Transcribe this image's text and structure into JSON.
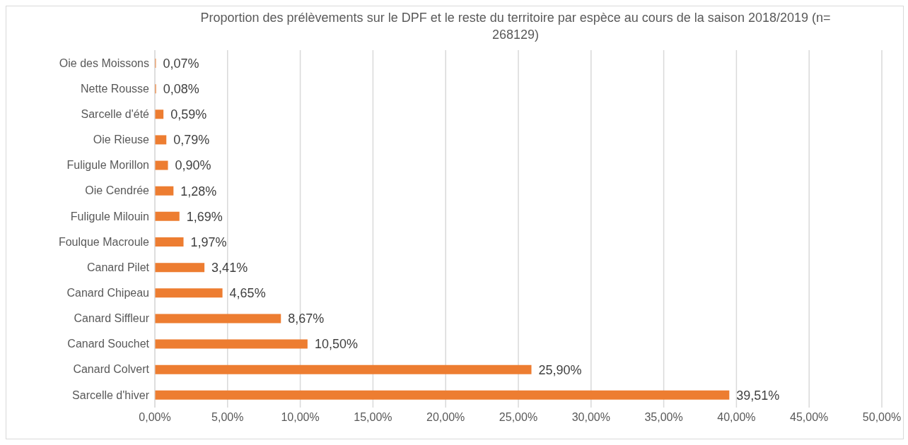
{
  "chart_data": {
    "type": "bar",
    "orientation": "horizontal",
    "title": "Proportion des prélèvements sur le DPF et le reste du territoire par espèce au cours de la saison 2018/2019 (n= 268129)",
    "categories": [
      "Oie des Moissons",
      "Nette Rousse",
      "Sarcelle d'été",
      "Oie Rieuse",
      "Fuligule Morillon",
      "Oie Cendrée",
      "Fuligule Milouin",
      "Foulque Macroule",
      "Canard Pilet",
      "Canard Chipeau",
      "Canard Siffleur",
      "Canard Souchet",
      "Canard Colvert",
      "Sarcelle d'hiver"
    ],
    "values": [
      0.07,
      0.08,
      0.59,
      0.79,
      0.9,
      1.28,
      1.69,
      1.97,
      3.41,
      4.65,
      8.67,
      10.5,
      25.9,
      39.51
    ],
    "value_labels": [
      "0,07%",
      "0,08%",
      "0,59%",
      "0,79%",
      "0,90%",
      "1,28%",
      "1,69%",
      "1,97%",
      "3,41%",
      "4,65%",
      "8,67%",
      "10,50%",
      "25,90%",
      "39,51%"
    ],
    "color": "#ed7d31",
    "xlim": [
      0,
      50
    ],
    "xticks": [
      {
        "value": 0,
        "label": "0,00%"
      },
      {
        "value": 5,
        "label": "5,00%"
      },
      {
        "value": 10,
        "label": "10,00%"
      },
      {
        "value": 15,
        "label": "15,00%"
      },
      {
        "value": 20,
        "label": "20,00%"
      },
      {
        "value": 25,
        "label": "25,00%"
      },
      {
        "value": 30,
        "label": "30,00%"
      },
      {
        "value": 35,
        "label": "35,00%"
      },
      {
        "value": 40,
        "label": "40,00%"
      },
      {
        "value": 45,
        "label": "45,00%"
      },
      {
        "value": 50,
        "label": "50,00%"
      }
    ],
    "grid": "x",
    "legend": false
  }
}
